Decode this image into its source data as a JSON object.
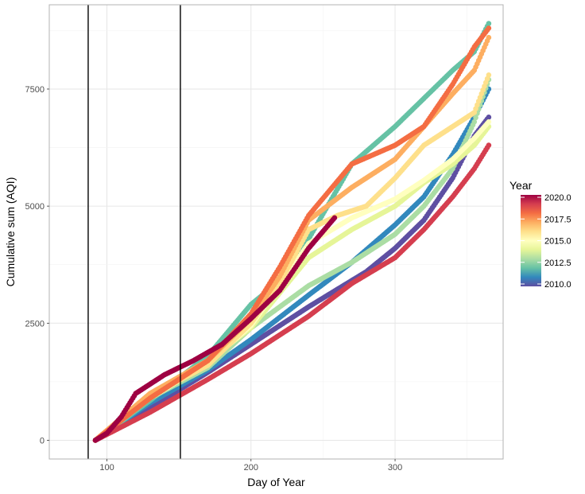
{
  "chart_data": {
    "type": "scatter",
    "xlabel": "Day of Year",
    "ylabel": "Cumulative sum (AQI)",
    "xlim": [
      60,
      375
    ],
    "ylim": [
      -400,
      9300
    ],
    "x_ticks": [
      100,
      200,
      300
    ],
    "y_ticks": [
      0,
      2500,
      5000,
      7500
    ],
    "x_tick_labels": [
      "100",
      "200",
      "300"
    ],
    "y_tick_labels": [
      "0",
      "2500",
      "5000",
      "7500"
    ],
    "grid": true,
    "vlines": [
      87,
      151
    ],
    "legend": {
      "title": "Year",
      "position": "right",
      "type": "colorbar",
      "range": [
        2010,
        2020
      ],
      "breaks": [
        "2010.0",
        "2012.5",
        "2015.0",
        "2017.5",
        "2020.0"
      ]
    },
    "colormap": [
      "#5E4FA2",
      "#3288BD",
      "#66C2A5",
      "#ABDDA4",
      "#E6F598",
      "#FFFFBF",
      "#FEE08B",
      "#FDAE61",
      "#F46D43",
      "#D53E4F",
      "#9E0142"
    ],
    "series": [
      {
        "year": 2010,
        "points": [
          [
            92,
            0
          ],
          [
            130,
            700
          ],
          [
            170,
            1450
          ],
          [
            200,
            2050
          ],
          [
            240,
            2850
          ],
          [
            280,
            3600
          ],
          [
            300,
            4100
          ],
          [
            320,
            4700
          ],
          [
            340,
            5600
          ],
          [
            355,
            6500
          ],
          [
            365,
            6900
          ]
        ]
      },
      {
        "year": 2011,
        "points": [
          [
            92,
            0
          ],
          [
            130,
            800
          ],
          [
            170,
            1500
          ],
          [
            200,
            2150
          ],
          [
            240,
            3100
          ],
          [
            270,
            3800
          ],
          [
            300,
            4600
          ],
          [
            320,
            5200
          ],
          [
            340,
            6100
          ],
          [
            355,
            6900
          ],
          [
            365,
            7500
          ]
        ]
      },
      {
        "year": 2012,
        "points": [
          [
            92,
            0
          ],
          [
            130,
            850
          ],
          [
            170,
            1800
          ],
          [
            200,
            2900
          ],
          [
            220,
            3400
          ],
          [
            240,
            4300
          ],
          [
            270,
            5900
          ],
          [
            300,
            6700
          ],
          [
            320,
            7300
          ],
          [
            340,
            7900
          ],
          [
            355,
            8300
          ],
          [
            365,
            8900
          ]
        ]
      },
      {
        "year": 2013,
        "points": [
          [
            92,
            0
          ],
          [
            130,
            900
          ],
          [
            170,
            1550
          ],
          [
            200,
            2400
          ],
          [
            240,
            3300
          ],
          [
            270,
            3800
          ],
          [
            300,
            4400
          ],
          [
            320,
            5000
          ],
          [
            340,
            5800
          ],
          [
            355,
            6800
          ],
          [
            365,
            7700
          ]
        ]
      },
      {
        "year": 2014,
        "points": [
          [
            92,
            0
          ],
          [
            130,
            950
          ],
          [
            170,
            1700
          ],
          [
            200,
            2400
          ],
          [
            240,
            3900
          ],
          [
            270,
            4500
          ],
          [
            300,
            5000
          ],
          [
            320,
            5500
          ],
          [
            340,
            5900
          ],
          [
            355,
            6300
          ],
          [
            365,
            6700
          ]
        ]
      },
      {
        "year": 2015,
        "points": [
          [
            92,
            0
          ],
          [
            130,
            900
          ],
          [
            170,
            1650
          ],
          [
            200,
            2450
          ],
          [
            240,
            4200
          ],
          [
            270,
            4750
          ],
          [
            300,
            5150
          ],
          [
            320,
            5550
          ],
          [
            340,
            6000
          ],
          [
            355,
            6450
          ],
          [
            365,
            6800
          ]
        ]
      },
      {
        "year": 2016,
        "points": [
          [
            92,
            0
          ],
          [
            130,
            950
          ],
          [
            170,
            1600
          ],
          [
            200,
            2500
          ],
          [
            220,
            3350
          ],
          [
            240,
            4500
          ],
          [
            260,
            4800
          ],
          [
            280,
            5000
          ],
          [
            300,
            5600
          ],
          [
            320,
            6300
          ],
          [
            340,
            6700
          ],
          [
            355,
            7000
          ],
          [
            365,
            7800
          ]
        ]
      },
      {
        "year": 2017,
        "points": [
          [
            92,
            0
          ],
          [
            130,
            1000
          ],
          [
            170,
            1700
          ],
          [
            200,
            2600
          ],
          [
            220,
            3500
          ],
          [
            240,
            4700
          ],
          [
            270,
            5400
          ],
          [
            300,
            6000
          ],
          [
            320,
            6700
          ],
          [
            340,
            7400
          ],
          [
            355,
            7900
          ],
          [
            365,
            8600
          ]
        ]
      },
      {
        "year": 2018,
        "points": [
          [
            92,
            0
          ],
          [
            130,
            900
          ],
          [
            170,
            1700
          ],
          [
            200,
            2700
          ],
          [
            220,
            3700
          ],
          [
            240,
            4800
          ],
          [
            270,
            5900
          ],
          [
            300,
            6300
          ],
          [
            320,
            6700
          ],
          [
            340,
            7600
          ],
          [
            355,
            8400
          ],
          [
            365,
            8800
          ]
        ]
      },
      {
        "year": 2019,
        "points": [
          [
            92,
            0
          ],
          [
            130,
            600
          ],
          [
            170,
            1300
          ],
          [
            200,
            1850
          ],
          [
            240,
            2650
          ],
          [
            270,
            3350
          ],
          [
            300,
            3900
          ],
          [
            320,
            4500
          ],
          [
            340,
            5200
          ],
          [
            355,
            5800
          ],
          [
            365,
            6300
          ]
        ]
      },
      {
        "year": 2020,
        "points": [
          [
            92,
            0
          ],
          [
            100,
            150
          ],
          [
            110,
            500
          ],
          [
            120,
            1000
          ],
          [
            140,
            1400
          ],
          [
            160,
            1700
          ],
          [
            180,
            2050
          ],
          [
            200,
            2600
          ],
          [
            220,
            3200
          ],
          [
            240,
            4100
          ],
          [
            258,
            4750
          ]
        ]
      }
    ]
  }
}
